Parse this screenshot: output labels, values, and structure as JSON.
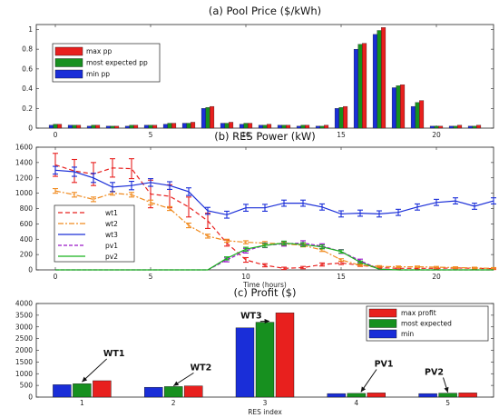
{
  "colors": {
    "max": "#e8201e",
    "expected": "#17901f",
    "min": "#1a2ed8",
    "wt1": "#e8201e",
    "wt2": "#f08a1e",
    "wt3": "#1a2ed8",
    "pv1": "#9b17c8",
    "pv2": "#17b21c"
  },
  "chart_data": [
    {
      "type": "bar",
      "title": "(a) Pool Price ($/kWh)",
      "xlabel": "",
      "ylabel": "",
      "xlim": [
        -1,
        23
      ],
      "ylim": [
        0,
        1.05
      ],
      "x": [
        0,
        1,
        2,
        3,
        4,
        5,
        6,
        7,
        8,
        9,
        10,
        11,
        12,
        13,
        14,
        15,
        16,
        17,
        18,
        19,
        20,
        21,
        22
      ],
      "x_ticks": [
        "0",
        "5",
        "10",
        "15",
        "20"
      ],
      "y_ticks": [
        "0",
        "0.2",
        "0.4",
        "0.6",
        "0.8",
        "1"
      ],
      "legend_position": "upper-left",
      "series": [
        {
          "name": "max pp",
          "color_key": "max",
          "values": [
            0.04,
            0.03,
            0.03,
            0.02,
            0.03,
            0.03,
            0.05,
            0.06,
            0.22,
            0.06,
            0.05,
            0.04,
            0.03,
            0.03,
            0.03,
            0.22,
            0.86,
            1.02,
            0.44,
            0.28,
            0.02,
            0.03,
            0.03
          ]
        },
        {
          "name": "most expected pp",
          "color_key": "expected",
          "values": [
            0.04,
            0.03,
            0.03,
            0.02,
            0.03,
            0.03,
            0.05,
            0.05,
            0.21,
            0.05,
            0.05,
            0.03,
            0.03,
            0.03,
            0.02,
            0.21,
            0.85,
            0.99,
            0.43,
            0.26,
            0.02,
            0.02,
            0.02
          ]
        },
        {
          "name": "min pp",
          "color_key": "min",
          "values": [
            0.03,
            0.03,
            0.02,
            0.02,
            0.02,
            0.03,
            0.04,
            0.05,
            0.2,
            0.05,
            0.04,
            0.03,
            0.03,
            0.02,
            0.02,
            0.2,
            0.8,
            0.95,
            0.41,
            0.22,
            0.02,
            0.02,
            0.02
          ]
        }
      ]
    },
    {
      "type": "line",
      "title": "(b) RES Power (kW)",
      "xlabel": "Time (hours)",
      "ylabel": "",
      "xlim": [
        -1,
        23
      ],
      "ylim": [
        0,
        1600
      ],
      "x": [
        0,
        1,
        2,
        3,
        4,
        5,
        6,
        7,
        8,
        9,
        10,
        11,
        12,
        13,
        14,
        15,
        16,
        17,
        18,
        19,
        20,
        21,
        22,
        23
      ],
      "x_ticks": [
        "0",
        "5",
        "10",
        "15",
        "20"
      ],
      "y_ticks": [
        "0",
        "200",
        "400",
        "600",
        "800",
        "1000",
        "1200",
        "1400",
        "1600"
      ],
      "legend_position": "lower-left",
      "series": [
        {
          "name": "wt1",
          "color_key": "wt1",
          "dash": "5,3",
          "values": [
            1370,
            1290,
            1250,
            1330,
            1320,
            990,
            960,
            820,
            640,
            350,
            130,
            60,
            20,
            30,
            70,
            90,
            60,
            30,
            20,
            20,
            20,
            25,
            20,
            15
          ],
          "err": [
            150,
            150,
            150,
            120,
            130,
            180,
            150,
            130,
            100,
            40,
            30,
            20,
            15,
            15,
            20,
            20,
            15,
            10,
            10,
            10,
            10,
            10,
            10,
            10
          ]
        },
        {
          "name": "wt2",
          "color_key": "wt2",
          "dash": "6,2,2,2",
          "values": [
            1030,
            980,
            920,
            1000,
            980,
            880,
            800,
            580,
            440,
            380,
            360,
            350,
            340,
            320,
            260,
            130,
            60,
            45,
            40,
            40,
            35,
            30,
            25,
            20
          ],
          "err": [
            30,
            30,
            30,
            25,
            30,
            30,
            25,
            30,
            25,
            20,
            20,
            20,
            20,
            20,
            20,
            15,
            10,
            10,
            10,
            10,
            10,
            10,
            10,
            10
          ]
        },
        {
          "name": "wt3",
          "color_key": "wt3",
          "dash": "",
          "values": [
            1300,
            1280,
            1200,
            1080,
            1100,
            1140,
            1100,
            1020,
            770,
            720,
            810,
            810,
            870,
            870,
            820,
            730,
            740,
            730,
            750,
            820,
            880,
            900,
            830,
            900
          ],
          "err": [
            50,
            60,
            60,
            60,
            55,
            50,
            50,
            50,
            45,
            45,
            45,
            45,
            40,
            40,
            40,
            40,
            40,
            40,
            40,
            40,
            40,
            40,
            40,
            40
          ]
        },
        {
          "name": "pv1",
          "color_key": "pv1",
          "dash": "4,2",
          "values": [
            0,
            0,
            0,
            0,
            0,
            0,
            0,
            0,
            0,
            130,
            250,
            320,
            340,
            350,
            310,
            240,
            120,
            10,
            0,
            0,
            0,
            0,
            0,
            0
          ],
          "err": [
            0,
            0,
            0,
            0,
            0,
            0,
            0,
            0,
            0,
            25,
            30,
            30,
            30,
            30,
            30,
            25,
            20,
            0,
            0,
            0,
            0,
            0,
            0,
            0
          ]
        },
        {
          "name": "pv2",
          "color_key": "pv2",
          "dash": "",
          "values": [
            0,
            0,
            0,
            0,
            0,
            0,
            0,
            0,
            0,
            150,
            270,
            320,
            350,
            330,
            300,
            240,
            100,
            10,
            0,
            0,
            0,
            0,
            0,
            0
          ],
          "err": [
            0,
            0,
            0,
            0,
            0,
            0,
            0,
            0,
            0,
            20,
            25,
            25,
            25,
            25,
            25,
            20,
            15,
            0,
            0,
            0,
            0,
            0,
            0,
            0
          ]
        }
      ]
    },
    {
      "type": "bar",
      "title": "(c) Profit ($)",
      "xlabel": "RES index",
      "ylabel": "",
      "ylim": [
        0,
        4000
      ],
      "categories": [
        "1",
        "2",
        "3",
        "4",
        "5"
      ],
      "y_ticks": [
        "0",
        "500",
        "1000",
        "1500",
        "2000",
        "2500",
        "3000",
        "3500",
        "4000"
      ],
      "legend_position": "top-right",
      "bar_order": [
        "min",
        "most expected",
        "max profit"
      ],
      "series": [
        {
          "name": "max profit",
          "color_key": "max",
          "values": [
            700,
            480,
            3600,
            180,
            180
          ]
        },
        {
          "name": "most expected",
          "color_key": "expected",
          "values": [
            570,
            450,
            3200,
            160,
            170
          ]
        },
        {
          "name": "min",
          "color_key": "min",
          "values": [
            530,
            420,
            2960,
            150,
            150
          ]
        }
      ],
      "annotations": [
        {
          "text": "WT1",
          "x": 1.35,
          "y": 1750,
          "ax": 1.0,
          "ay": 650
        },
        {
          "text": "WT2",
          "x": 2.3,
          "y": 1150,
          "ax": 2.0,
          "ay": 480
        },
        {
          "text": "WT3",
          "x": 2.85,
          "y": 3350,
          "ax": 3.05,
          "ay": 3250
        },
        {
          "text": "PV1",
          "x": 4.3,
          "y": 1300,
          "ax": 4.05,
          "ay": 220
        },
        {
          "text": "PV2",
          "x": 4.85,
          "y": 950,
          "ax": 5.0,
          "ay": 200
        }
      ]
    }
  ]
}
